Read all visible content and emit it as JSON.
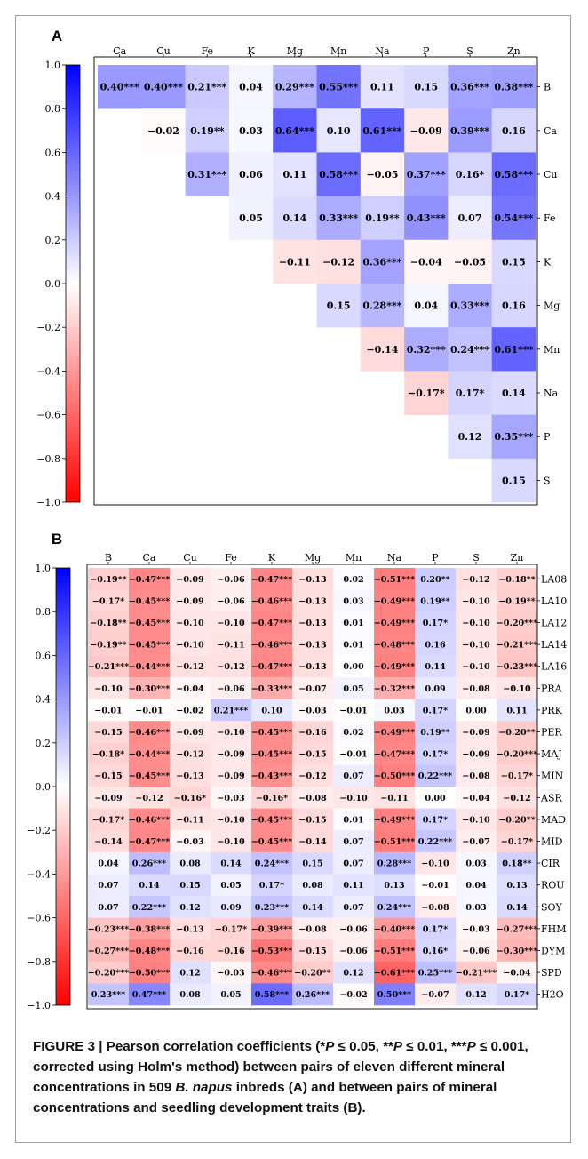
{
  "caption": {
    "label": "FIGURE 3 | ",
    "part1": "Pearson correlation coefficients (*",
    "p1": "P",
    "part2": " ≤ 0.05, **",
    "p2": "P",
    "part3": " ≤ 0.01, ***",
    "p3": "P",
    "part4": " ≤ 0.001, corrected using Holm's method) between pairs of eleven different mineral concentrations in 509 ",
    "species": "B. napus",
    "part5": " inbreds (A) and between pairs of mineral concentrations and seedling development traits (B)."
  },
  "colors": {
    "positive": "#0000ff",
    "negative": "#ff0000",
    "neutral": "#ffffff"
  },
  "chart_data": [
    {
      "panel": "A",
      "type": "heatmap",
      "colorbar_ticks": [
        "1.0",
        "0.8",
        "0.6",
        "0.4",
        "0.2",
        "0.0",
        "−0.2",
        "−0.4",
        "−0.6",
        "−0.8",
        "−1.0"
      ],
      "zlim": [
        -1.0,
        1.0
      ],
      "columns": [
        "Ca",
        "Cu",
        "Fe",
        "K",
        "Mg",
        "Mn",
        "Na",
        "P",
        "S",
        "Zn"
      ],
      "rows": [
        "B",
        "Ca",
        "Cu",
        "Fe",
        "K",
        "Mg",
        "Mn",
        "Na",
        "P",
        "S"
      ],
      "values": [
        [
          0.4,
          0.4,
          0.21,
          0.04,
          0.29,
          0.55,
          0.11,
          0.15,
          0.36,
          0.38
        ],
        [
          null,
          -0.02,
          0.19,
          0.03,
          0.64,
          0.1,
          0.61,
          -0.09,
          0.39,
          0.16
        ],
        [
          null,
          null,
          0.31,
          0.06,
          0.11,
          0.58,
          -0.05,
          0.37,
          0.16,
          0.58
        ],
        [
          null,
          null,
          null,
          0.05,
          0.14,
          0.33,
          0.19,
          0.43,
          0.07,
          0.54
        ],
        [
          null,
          null,
          null,
          null,
          -0.11,
          -0.12,
          0.36,
          -0.04,
          -0.05,
          0.15
        ],
        [
          null,
          null,
          null,
          null,
          null,
          0.15,
          0.28,
          0.04,
          0.33,
          0.16
        ],
        [
          null,
          null,
          null,
          null,
          null,
          null,
          -0.14,
          0.32,
          0.24,
          0.61
        ],
        [
          null,
          null,
          null,
          null,
          null,
          null,
          null,
          -0.17,
          0.17,
          0.14
        ],
        [
          null,
          null,
          null,
          null,
          null,
          null,
          null,
          null,
          0.12,
          0.35
        ],
        [
          null,
          null,
          null,
          null,
          null,
          null,
          null,
          null,
          null,
          0.15
        ]
      ],
      "labels": [
        [
          "0.40***",
          "0.40***",
          "0.21***",
          "0.04",
          "0.29***",
          "0.55***",
          "0.11",
          "0.15",
          "0.36***",
          "0.38***"
        ],
        [
          "",
          "−0.02",
          "0.19**",
          "0.03",
          "0.64***",
          "0.10",
          "0.61***",
          "−0.09",
          "0.39***",
          "0.16"
        ],
        [
          "",
          "",
          "0.31***",
          "0.06",
          "0.11",
          "0.58***",
          "−0.05",
          "0.37***",
          "0.16*",
          "0.58***"
        ],
        [
          "",
          "",
          "",
          "0.05",
          "0.14",
          "0.33***",
          "0.19**",
          "0.43***",
          "0.07",
          "0.54***"
        ],
        [
          "",
          "",
          "",
          "",
          "−0.11",
          "−0.12",
          "0.36***",
          "−0.04",
          "−0.05",
          "0.15"
        ],
        [
          "",
          "",
          "",
          "",
          "",
          "0.15",
          "0.28***",
          "0.04",
          "0.33***",
          "0.16"
        ],
        [
          "",
          "",
          "",
          "",
          "",
          "",
          "−0.14",
          "0.32***",
          "0.24***",
          "0.61***"
        ],
        [
          "",
          "",
          "",
          "",
          "",
          "",
          "",
          "−0.17*",
          "0.17*",
          "0.14"
        ],
        [
          "",
          "",
          "",
          "",
          "",
          "",
          "",
          "",
          "0.12",
          "0.35***"
        ],
        [
          "",
          "",
          "",
          "",
          "",
          "",
          "",
          "",
          "",
          "0.15"
        ]
      ]
    },
    {
      "panel": "B",
      "type": "heatmap",
      "colorbar_ticks": [
        "1.0",
        "0.8",
        "0.6",
        "0.4",
        "0.2",
        "0.0",
        "−0.2",
        "−0.4",
        "−0.6",
        "−0.8",
        "−1.0"
      ],
      "zlim": [
        -1.0,
        1.0
      ],
      "columns": [
        "B",
        "Ca",
        "Cu",
        "Fe",
        "K",
        "Mg",
        "Mn",
        "Na",
        "P",
        "S",
        "Zn"
      ],
      "rows": [
        "LA08",
        "LA10",
        "LA12",
        "LA14",
        "LA16",
        "PRA",
        "PRK",
        "PER",
        "MAJ",
        "MIN",
        "ASR",
        "MAD",
        "MID",
        "CIR",
        "ROU",
        "SOY",
        "FHM",
        "DYM",
        "SPD",
        "H2O"
      ],
      "values": [
        [
          -0.19,
          -0.47,
          -0.09,
          -0.06,
          -0.47,
          -0.13,
          0.02,
          -0.51,
          0.2,
          -0.12,
          -0.18
        ],
        [
          -0.17,
          -0.45,
          -0.09,
          -0.06,
          -0.46,
          -0.13,
          0.03,
          -0.49,
          0.19,
          -0.1,
          -0.19
        ],
        [
          -0.18,
          -0.45,
          -0.1,
          -0.1,
          -0.47,
          -0.13,
          0.01,
          -0.49,
          0.17,
          -0.1,
          -0.2
        ],
        [
          -0.19,
          -0.45,
          -0.1,
          -0.11,
          -0.46,
          -0.13,
          0.01,
          -0.48,
          0.16,
          -0.1,
          -0.21
        ],
        [
          -0.21,
          -0.44,
          -0.12,
          -0.12,
          -0.47,
          -0.13,
          0.0,
          -0.49,
          0.14,
          -0.1,
          -0.23
        ],
        [
          -0.1,
          -0.3,
          -0.04,
          -0.06,
          -0.33,
          -0.07,
          0.05,
          -0.32,
          0.09,
          -0.08,
          -0.1
        ],
        [
          -0.01,
          -0.01,
          -0.02,
          0.21,
          0.1,
          -0.03,
          -0.01,
          0.03,
          0.17,
          0.0,
          0.11
        ],
        [
          -0.15,
          -0.46,
          -0.09,
          -0.1,
          -0.45,
          -0.16,
          0.02,
          -0.49,
          0.19,
          -0.09,
          -0.2
        ],
        [
          -0.18,
          -0.44,
          -0.12,
          -0.09,
          -0.45,
          -0.15,
          -0.01,
          -0.47,
          0.17,
          -0.09,
          -0.2
        ],
        [
          -0.15,
          -0.45,
          -0.13,
          -0.09,
          -0.43,
          -0.12,
          0.07,
          -0.5,
          0.22,
          -0.08,
          -0.17
        ],
        [
          -0.09,
          -0.12,
          -0.16,
          -0.03,
          -0.16,
          -0.08,
          -0.1,
          -0.11,
          0.0,
          -0.04,
          -0.12
        ],
        [
          -0.17,
          -0.46,
          -0.11,
          -0.1,
          -0.45,
          -0.15,
          0.01,
          -0.49,
          0.17,
          -0.1,
          -0.2
        ],
        [
          -0.14,
          -0.47,
          -0.03,
          -0.1,
          -0.45,
          -0.14,
          0.07,
          -0.51,
          0.22,
          -0.07,
          -0.17
        ],
        [
          0.04,
          0.26,
          0.08,
          0.14,
          0.24,
          0.15,
          0.07,
          0.28,
          -0.1,
          0.03,
          0.18
        ],
        [
          0.07,
          0.14,
          0.15,
          0.05,
          0.17,
          0.08,
          0.11,
          0.13,
          -0.01,
          0.04,
          0.13
        ],
        [
          0.07,
          0.22,
          0.12,
          0.09,
          0.23,
          0.14,
          0.07,
          0.24,
          -0.08,
          0.03,
          0.14
        ],
        [
          -0.23,
          -0.38,
          -0.13,
          -0.17,
          -0.39,
          -0.08,
          -0.06,
          -0.4,
          0.17,
          -0.03,
          -0.27
        ],
        [
          -0.27,
          -0.48,
          -0.16,
          -0.16,
          -0.53,
          -0.15,
          -0.06,
          -0.51,
          0.16,
          -0.06,
          -0.3
        ],
        [
          -0.2,
          -0.5,
          0.12,
          -0.03,
          -0.46,
          -0.2,
          0.12,
          -0.61,
          0.25,
          -0.21,
          -0.04
        ],
        [
          0.23,
          0.47,
          0.08,
          0.05,
          0.58,
          0.26,
          -0.02,
          0.5,
          -0.07,
          0.12,
          0.17
        ]
      ],
      "labels": [
        [
          "−0.19**",
          "−0.47***",
          "−0.09",
          "−0.06",
          "−0.47***",
          "−0.13",
          "0.02",
          "−0.51***",
          "0.20**",
          "−0.12",
          "−0.18**"
        ],
        [
          "−0.17*",
          "−0.45***",
          "−0.09",
          "−0.06",
          "−0.46***",
          "−0.13",
          "0.03",
          "−0.49***",
          "0.19**",
          "−0.10",
          "−0.19**"
        ],
        [
          "−0.18**",
          "−0.45***",
          "−0.10",
          "−0.10",
          "−0.47***",
          "−0.13",
          "0.01",
          "−0.49***",
          "0.17*",
          "−0.10",
          "−0.20***"
        ],
        [
          "−0.19**",
          "−0.45***",
          "−0.10",
          "−0.11",
          "−0.46***",
          "−0.13",
          "0.01",
          "−0.48***",
          "0.16",
          "−0.10",
          "−0.21***"
        ],
        [
          "−0.21***",
          "−0.44***",
          "−0.12",
          "−0.12",
          "−0.47***",
          "−0.13",
          "0.00",
          "−0.49***",
          "0.14",
          "−0.10",
          "−0.23***"
        ],
        [
          "−0.10",
          "−0.30***",
          "−0.04",
          "−0.06",
          "−0.33***",
          "−0.07",
          "0.05",
          "−0.32***",
          "0.09",
          "−0.08",
          "−0.10"
        ],
        [
          "−0.01",
          "−0.01",
          "−0.02",
          "0.21***",
          "0.10",
          "−0.03",
          "−0.01",
          "0.03",
          "0.17*",
          "0.00",
          "0.11"
        ],
        [
          "−0.15",
          "−0.46***",
          "−0.09",
          "−0.10",
          "−0.45***",
          "−0.16",
          "0.02",
          "−0.49***",
          "0.19**",
          "−0.09",
          "−0.20**"
        ],
        [
          "−0.18*",
          "−0.44***",
          "−0.12",
          "−0.09",
          "−0.45***",
          "−0.15",
          "−0.01",
          "−0.47***",
          "0.17*",
          "−0.09",
          "−0.20***"
        ],
        [
          "−0.15",
          "−0.45***",
          "−0.13",
          "−0.09",
          "−0.43***",
          "−0.12",
          "0.07",
          "−0.50***",
          "0.22***",
          "−0.08",
          "−0.17*"
        ],
        [
          "−0.09",
          "−0.12",
          "−0.16*",
          "−0.03",
          "−0.16*",
          "−0.08",
          "−0.10",
          "−0.11",
          "0.00",
          "−0.04",
          "−0.12"
        ],
        [
          "−0.17*",
          "−0.46***",
          "−0.11",
          "−0.10",
          "−0.45***",
          "−0.15",
          "0.01",
          "−0.49***",
          "0.17*",
          "−0.10",
          "−0.20**"
        ],
        [
          "−0.14",
          "−0.47***",
          "−0.03",
          "−0.10",
          "−0.45***",
          "−0.14",
          "0.07",
          "−0.51***",
          "0.22***",
          "−0.07",
          "−0.17*"
        ],
        [
          "0.04",
          "0.26***",
          "0.08",
          "0.14",
          "0.24***",
          "0.15",
          "0.07",
          "0.28***",
          "−0.10",
          "0.03",
          "0.18**"
        ],
        [
          "0.07",
          "0.14",
          "0.15",
          "0.05",
          "0.17*",
          "0.08",
          "0.11",
          "0.13",
          "−0.01",
          "0.04",
          "0.13"
        ],
        [
          "0.07",
          "0.22***",
          "0.12",
          "0.09",
          "0.23***",
          "0.14",
          "0.07",
          "0.24***",
          "−0.08",
          "0.03",
          "0.14"
        ],
        [
          "−0.23***",
          "−0.38***",
          "−0.13",
          "−0.17*",
          "−0.39***",
          "−0.08",
          "−0.06",
          "−0.40***",
          "0.17*",
          "−0.03",
          "−0.27***"
        ],
        [
          "−0.27***",
          "−0.48***",
          "−0.16",
          "−0.16",
          "−0.53***",
          "−0.15",
          "−0.06",
          "−0.51***",
          "0.16*",
          "−0.06",
          "−0.30***"
        ],
        [
          "−0.20***",
          "−0.50***",
          "0.12",
          "−0.03",
          "−0.46***",
          "−0.20**",
          "0.12",
          "−0.61***",
          "0.25***",
          "−0.21***",
          "−0.04"
        ],
        [
          "0.23***",
          "0.47***",
          "0.08",
          "0.05",
          "0.58***",
          "0.26***",
          "−0.02",
          "0.50***",
          "−0.07",
          "0.12",
          "0.17*"
        ]
      ]
    }
  ]
}
